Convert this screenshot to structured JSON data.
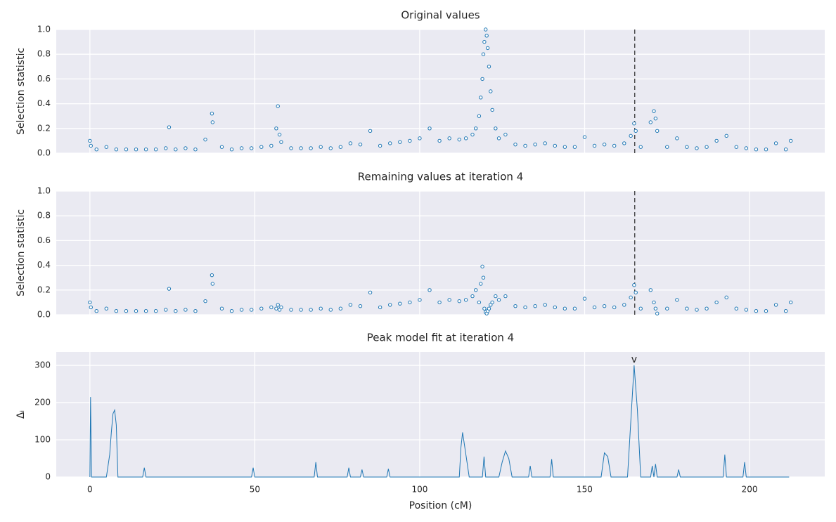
{
  "chart_data": [
    {
      "type": "scatter",
      "title": "Original values",
      "ylabel": "Selection statistic",
      "color": "#1f77b4",
      "x": [
        0,
        0.3,
        2,
        5,
        8,
        11,
        14,
        17,
        20,
        23,
        24,
        26,
        29,
        32,
        35,
        37,
        37.2,
        40,
        43,
        46,
        49,
        52,
        55,
        56.5,
        57,
        57.5,
        58,
        61,
        64,
        67,
        70,
        73,
        76,
        79,
        82,
        85,
        88,
        91,
        94,
        97,
        100,
        103,
        106,
        109,
        112,
        114,
        116,
        117,
        118,
        118.5,
        119,
        119.3,
        119.6,
        120,
        120.3,
        120.6,
        121,
        121.5,
        122,
        123,
        124,
        126,
        129,
        132,
        135,
        138,
        141,
        144,
        147,
        150,
        153,
        156,
        159,
        162,
        164,
        165,
        165.5,
        167,
        170,
        171,
        171.5,
        172,
        175,
        178,
        181,
        184,
        187,
        190,
        193,
        196,
        199,
        202,
        205,
        208,
        211,
        212.5
      ],
      "values": [
        0.1,
        0.06,
        0.03,
        0.05,
        0.03,
        0.03,
        0.03,
        0.03,
        0.03,
        0.04,
        0.21,
        0.03,
        0.04,
        0.03,
        0.11,
        0.32,
        0.25,
        0.05,
        0.03,
        0.04,
        0.04,
        0.05,
        0.06,
        0.2,
        0.38,
        0.15,
        0.09,
        0.04,
        0.04,
        0.04,
        0.05,
        0.04,
        0.05,
        0.08,
        0.07,
        0.18,
        0.06,
        0.08,
        0.09,
        0.1,
        0.12,
        0.2,
        0.1,
        0.12,
        0.11,
        0.12,
        0.15,
        0.2,
        0.3,
        0.45,
        0.6,
        0.8,
        0.9,
        1.0,
        0.95,
        0.85,
        0.7,
        0.5,
        0.35,
        0.2,
        0.12,
        0.15,
        0.07,
        0.06,
        0.07,
        0.08,
        0.06,
        0.05,
        0.05,
        0.13,
        0.06,
        0.07,
        0.06,
        0.08,
        0.14,
        0.24,
        0.18,
        0.05,
        0.25,
        0.34,
        0.28,
        0.18,
        0.05,
        0.12,
        0.05,
        0.04,
        0.05,
        0.1,
        0.14,
        0.05,
        0.04,
        0.03,
        0.03,
        0.08,
        0.03,
        0.1
      ],
      "ylim": [
        0,
        1
      ],
      "yticks": [
        {
          "value": 0,
          "label": "0.0"
        },
        {
          "value": 0.2,
          "label": "0.2"
        },
        {
          "value": 0.4,
          "label": "0.4"
        },
        {
          "value": 0.6,
          "label": "0.6"
        },
        {
          "value": 0.8,
          "label": "0.8"
        },
        {
          "value": 1,
          "label": "1.0"
        }
      ],
      "xlim": [
        -10.2,
        222.8
      ],
      "vline": 165.2,
      "grid": true
    },
    {
      "type": "scatter",
      "title": "Remaining values at iteration 4",
      "ylabel": "Selection statistic",
      "color": "#1f77b4",
      "x": [
        0,
        0.3,
        2,
        5,
        8,
        11,
        14,
        17,
        20,
        23,
        24,
        26,
        29,
        32,
        35,
        37,
        37.2,
        40,
        43,
        46,
        49,
        52,
        55,
        56.5,
        57,
        57.5,
        58,
        61,
        64,
        67,
        70,
        73,
        76,
        79,
        82,
        85,
        88,
        91,
        94,
        97,
        100,
        103,
        106,
        109,
        112,
        114,
        116,
        117,
        118,
        118.5,
        119,
        119.3,
        119.6,
        120,
        120.3,
        120.6,
        121,
        121.5,
        122,
        123,
        124,
        126,
        129,
        132,
        135,
        138,
        141,
        144,
        147,
        150,
        153,
        156,
        159,
        162,
        164,
        165,
        165.5,
        167,
        170,
        171,
        171.5,
        172,
        175,
        178,
        181,
        184,
        187,
        190,
        193,
        196,
        199,
        202,
        205,
        208,
        211,
        212.5
      ],
      "values": [
        0.1,
        0.06,
        0.03,
        0.05,
        0.03,
        0.03,
        0.03,
        0.03,
        0.03,
        0.04,
        0.21,
        0.03,
        0.04,
        0.03,
        0.11,
        0.32,
        0.25,
        0.05,
        0.03,
        0.04,
        0.04,
        0.05,
        0.06,
        0.05,
        0.08,
        0.04,
        0.06,
        0.04,
        0.04,
        0.04,
        0.05,
        0.04,
        0.05,
        0.08,
        0.07,
        0.18,
        0.06,
        0.08,
        0.09,
        0.1,
        0.12,
        0.2,
        0.1,
        0.12,
        0.11,
        0.12,
        0.15,
        0.2,
        0.1,
        0.25,
        0.39,
        0.3,
        0.05,
        0.02,
        0.01,
        0.03,
        0.05,
        0.08,
        0.1,
        0.15,
        0.12,
        0.15,
        0.07,
        0.06,
        0.07,
        0.08,
        0.06,
        0.05,
        0.05,
        0.13,
        0.06,
        0.07,
        0.06,
        0.08,
        0.14,
        0.24,
        0.18,
        0.05,
        0.2,
        0.1,
        0.05,
        0.01,
        0.05,
        0.12,
        0.05,
        0.04,
        0.05,
        0.1,
        0.14,
        0.05,
        0.04,
        0.03,
        0.03,
        0.08,
        0.03,
        0.1
      ],
      "ylim": [
        0,
        1
      ],
      "yticks": [
        {
          "value": 0,
          "label": "0.0"
        },
        {
          "value": 0.2,
          "label": "0.2"
        },
        {
          "value": 0.4,
          "label": "0.4"
        },
        {
          "value": 0.6,
          "label": "0.6"
        },
        {
          "value": 0.8,
          "label": "0.8"
        },
        {
          "value": 1,
          "label": "1.0"
        }
      ],
      "xlim": [
        -10.2,
        222.8
      ],
      "vline": 165.2,
      "grid": true
    },
    {
      "type": "line",
      "title": "Peak model fit at iteration 4",
      "ylabel": "Δᵢ",
      "xlabel": "Position (cM)",
      "color": "#1f77b4",
      "x": [
        0,
        0.2,
        0.5,
        5,
        6,
        6.5,
        7,
        7.5,
        8,
        8.5,
        16,
        16.5,
        17,
        49,
        49.5,
        50,
        68,
        68.5,
        69,
        78,
        78.5,
        79,
        82,
        82.5,
        83,
        90,
        90.5,
        91,
        112,
        112.5,
        113,
        114,
        115,
        119,
        119.5,
        120,
        124,
        125,
        126,
        127,
        128,
        133,
        133.5,
        134,
        139.5,
        140,
        140.5,
        155,
        156,
        157,
        158,
        163,
        164,
        165,
        166,
        167,
        170,
        170.5,
        171,
        171.5,
        172,
        178,
        178.5,
        179,
        192,
        192.5,
        193,
        198,
        198.5,
        199,
        212
      ],
      "values": [
        0,
        215,
        0,
        0,
        60,
        120,
        170,
        180,
        140,
        0,
        0,
        25,
        0,
        0,
        25,
        0,
        0,
        40,
        0,
        0,
        25,
        0,
        0,
        20,
        0,
        0,
        22,
        0,
        0,
        80,
        120,
        60,
        0,
        0,
        55,
        0,
        0,
        40,
        70,
        50,
        0,
        0,
        30,
        0,
        0,
        48,
        0,
        0,
        65,
        55,
        0,
        0,
        150,
        300,
        180,
        0,
        0,
        30,
        0,
        35,
        0,
        0,
        20,
        0,
        0,
        60,
        0,
        0,
        40,
        0,
        0
      ],
      "ylim": [
        0,
        336
      ],
      "yticks": [
        0,
        100,
        200,
        300
      ],
      "xlim": [
        -10.2,
        222.8
      ],
      "xticks": [
        0,
        50,
        100,
        150,
        200
      ],
      "annotation": {
        "text": "v",
        "x": 165,
        "y": 300
      },
      "grid": true
    }
  ]
}
